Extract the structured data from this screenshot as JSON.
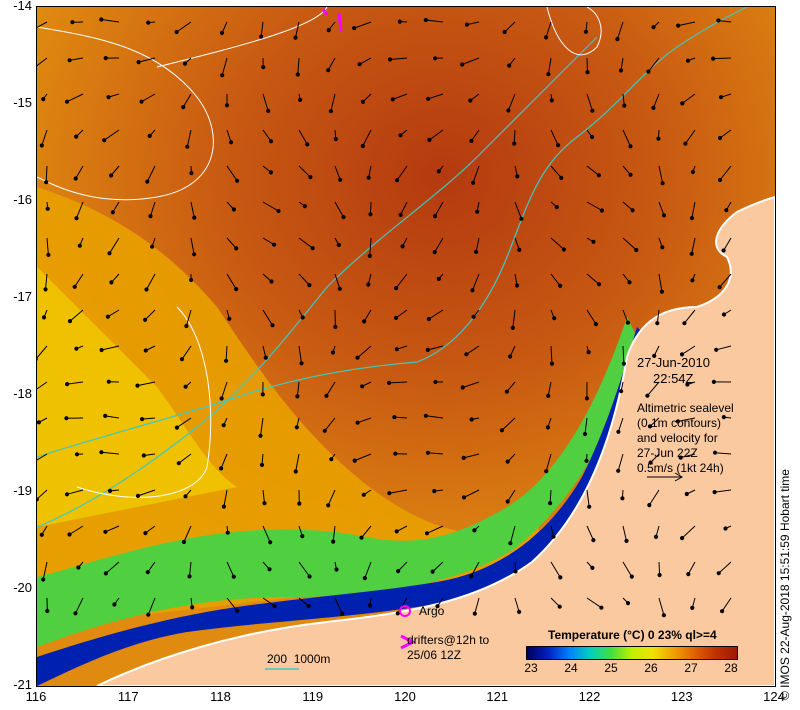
{
  "axes": {
    "lon_ticks": [
      116,
      117,
      118,
      119,
      120,
      121,
      122,
      123,
      124
    ],
    "lat_ticks": [
      -14,
      -15,
      -16,
      -17,
      -18,
      -19,
      -20,
      -21
    ],
    "lon_range": [
      116,
      124
    ],
    "lat_range": [
      -21,
      -14
    ]
  },
  "timestamp": {
    "date": "27-Jun-2010",
    "time": "22:54Z"
  },
  "altimetry_note": {
    "line1": "Altimetric sealevel",
    "line2": "(0.1m contours)",
    "line3": "and velocity for",
    "line4": "27-Jun 22Z",
    "line5": "0.5m/s (1kt 24h)"
  },
  "legend": {
    "argo": "Argo",
    "drifters_line1": "drifters@12h to",
    "drifters_line2": "25/06 12Z",
    "bathymetry": "200  1000m"
  },
  "colorbar": {
    "title": "Temperature (°C) 0 23% ql>=4",
    "ticks": [
      "23",
      "24",
      "25",
      "26",
      "27",
      "28"
    ],
    "colors": [
      "#000060",
      "#0020c0",
      "#0080ff",
      "#00d0c0",
      "#40e040",
      "#c0f000",
      "#f0e000",
      "#f0a000",
      "#e06000",
      "#c03000",
      "#a01800"
    ]
  },
  "credit": "© IMOS 22-Aug-2018 15:51:59 Hobart time",
  "colors": {
    "land": "#fbc9a0",
    "bathy_line": "#40c8c0",
    "argo": "#ff00ff"
  }
}
